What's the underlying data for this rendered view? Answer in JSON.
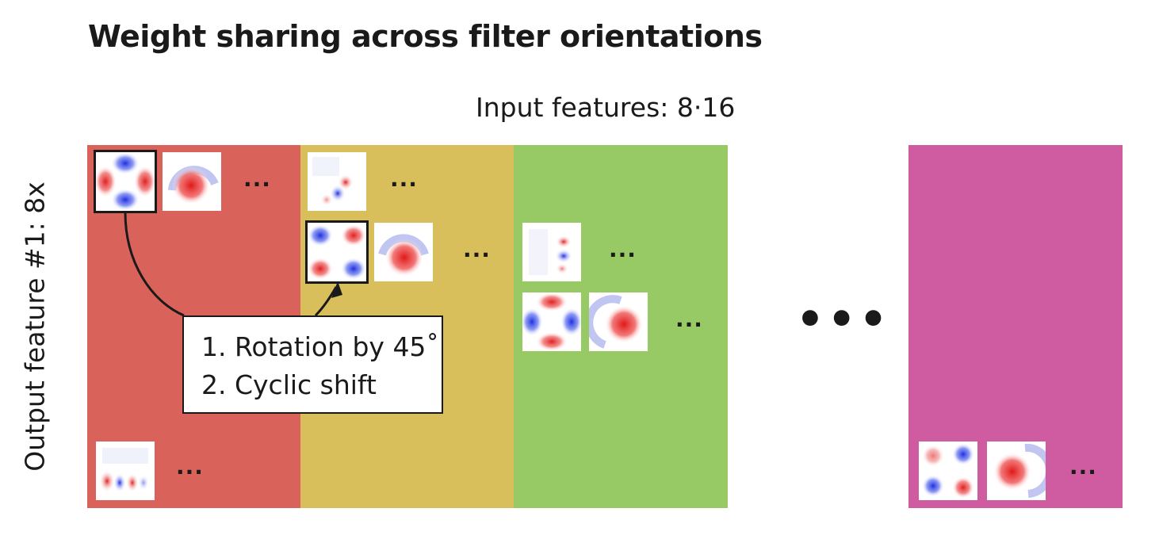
{
  "title": "Weight sharing across filter orientations",
  "input_label": "Input features: 8·16",
  "output_label": "Output feature #1: 8x",
  "ellipsis_small": "...",
  "ellipsis_large": "•••",
  "callout": {
    "line1": "1. Rotation by 45˚",
    "line2": "2. Cyclic shift"
  },
  "colors": {
    "band_red": "#d9625a",
    "band_yellow": "#d9bf5c",
    "band_green": "#97c965",
    "band_magenta": "#cf5ca1",
    "filter_positive": "#e02020",
    "filter_negative": "#2030e0"
  }
}
